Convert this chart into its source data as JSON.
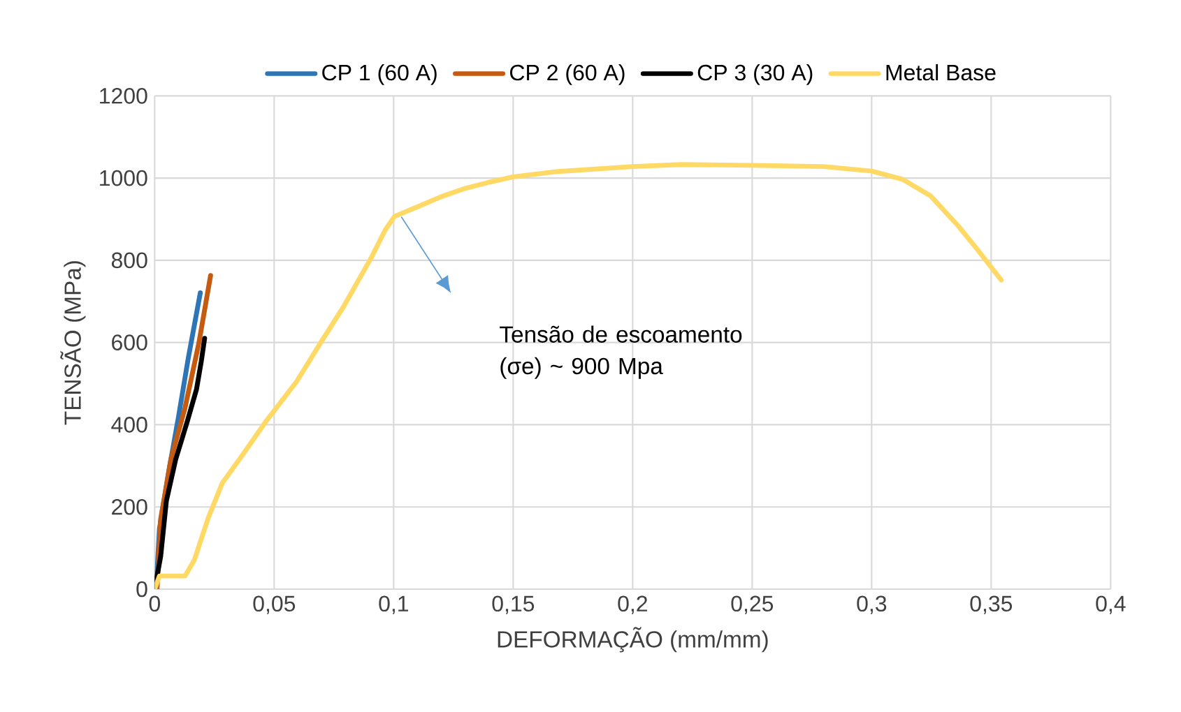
{
  "chart_data": {
    "type": "line",
    "xlabel": "DEFORMAÇÃO (mm/mm)",
    "ylabel": "TENSÃO (MPa)",
    "xlim": [
      0,
      0.4
    ],
    "ylim": [
      0,
      1200
    ],
    "xticks": [
      0,
      {
        "value": 0.05,
        "label": "0,05"
      },
      {
        "value": 0.1,
        "label": "0,1"
      },
      {
        "value": 0.15,
        "label": "0,15"
      },
      {
        "value": 0.2,
        "label": "0,2"
      },
      {
        "value": 0.25,
        "label": "0,25"
      },
      {
        "value": 0.3,
        "label": "0,3"
      },
      {
        "value": 0.35,
        "label": "0,35"
      },
      {
        "value": 0.4,
        "label": "0,4"
      }
    ],
    "yticks": [
      0,
      200,
      400,
      600,
      800,
      1000,
      1200
    ],
    "grid": true,
    "legend": "top",
    "marker": "none",
    "line_style": "solid",
    "series": [
      {
        "name": "CP 1 (60 A)",
        "color": "#2e75b6",
        "x": [
          0.0006,
          0.002,
          0.006,
          0.01,
          0.014,
          0.0191
        ],
        "values": [
          0,
          147,
          290,
          420,
          560,
          721
        ]
      },
      {
        "name": "CP 2 (60 A)",
        "color": "#c55a11",
        "x": [
          0.001,
          0.0025,
          0.0068,
          0.0127,
          0.0185,
          0.0234
        ],
        "values": [
          0,
          170,
          316,
          441,
          599,
          763
        ]
      },
      {
        "name": "CP 3 (30 A)",
        "color": "#000000",
        "x": [
          0,
          0.0025,
          0.0049,
          0.0088,
          0.0136,
          0.0175,
          0.0195,
          0.0209
        ],
        "values": [
          0,
          79,
          215,
          316,
          407,
          486,
          554,
          610
        ]
      },
      {
        "name": "Metal Base",
        "color": "#ffd966",
        "x": [
          0,
          0.002,
          0.0127,
          0.0166,
          0.0224,
          0.0283,
          0.036,
          0.0468,
          0.0595,
          0.0692,
          0.079,
          0.0906,
          0.0965,
          0.1004,
          0.11,
          0.12,
          0.13,
          0.14,
          0.15,
          0.1686,
          0.2,
          0.22,
          0.25,
          0.28,
          0.3,
          0.3129,
          0.3246,
          0.3363,
          0.344,
          0.3542
        ],
        "values": [
          0,
          32,
          32,
          71,
          173,
          258,
          320,
          410,
          506,
          597,
          687,
          806,
          874,
          907,
          930,
          955,
          975,
          990,
          1003,
          1016,
          1028,
          1033,
          1031,
          1028,
          1017,
          997,
          957,
          883,
          828,
          752
        ]
      }
    ],
    "annotations": [
      "Tensão de escoamento (σe) ~ 900 Mpa"
    ]
  }
}
